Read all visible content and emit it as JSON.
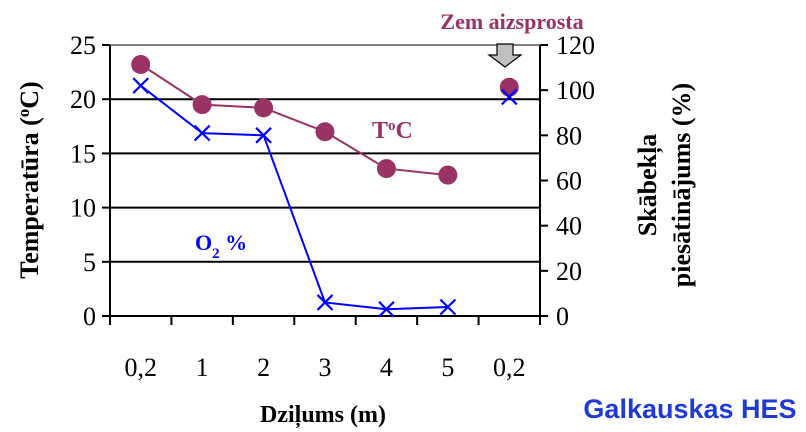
{
  "colors": {
    "temperature": "#993366",
    "oxygen": "#0000ff",
    "dam_label": "#993366",
    "caption": "#1f3bd6",
    "arrow_fill": "#bfbfbf",
    "grid": "#000000"
  },
  "annotations": {
    "temp_label_base": "T",
    "temp_label_sup": "o",
    "temp_label_tail": "C",
    "o2_label_base": "O",
    "o2_label_sub": "2",
    "o2_label_tail": " %",
    "dam_label": "Zem aizsprosta",
    "dam_arrow_icon": "down-arrow-icon"
  },
  "caption": "Galkauskas HES",
  "chart_data": {
    "type": "line",
    "categories": [
      "0,2",
      "1",
      "2",
      "3",
      "4",
      "5",
      "0,2"
    ],
    "xlabel": "Dziļums (m)",
    "ylabel_left_base": "Temperatūra (",
    "ylabel_left_sup": "o",
    "ylabel_left_tail": "C)",
    "ylabel_right_line1": "Skābekļa",
    "ylabel_right_line2": "piesātinājums (%)",
    "ylim_left": [
      0,
      25
    ],
    "yticks_left": [
      "0",
      "5",
      "10",
      "15",
      "20",
      "25"
    ],
    "ylim_right": [
      0,
      120
    ],
    "yticks_right": [
      "0",
      "20",
      "40",
      "60",
      "80",
      "100",
      "120"
    ],
    "grid": "horizontal",
    "series": [
      {
        "name": "T°C",
        "axis": "left",
        "marker": "circle",
        "values": [
          23.2,
          19.5,
          19.2,
          17.0,
          13.6,
          13.0,
          21.1
        ],
        "connected_points": 6
      },
      {
        "name": "O₂ %",
        "axis": "right",
        "marker": "x",
        "values": [
          102,
          81,
          80,
          6,
          3,
          4,
          97
        ],
        "connected_points": 6
      }
    ]
  }
}
